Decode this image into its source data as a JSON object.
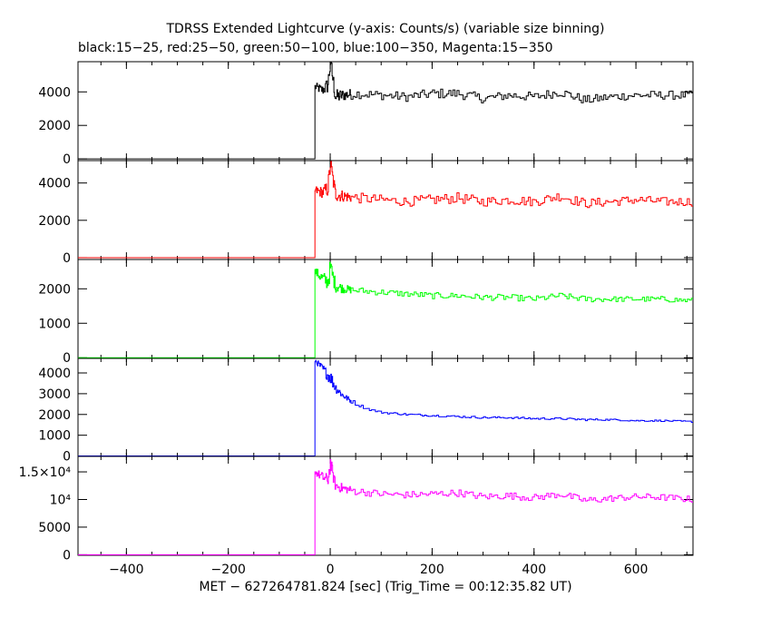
{
  "title_line1": "TDRSS Extended Lightcurve (y-axis: Counts/s) (variable size binning)",
  "title_line2": "black:15−25, red:25−50, green:50−100, blue:100−350, Magenta:15−350",
  "xlabel": "MET − 627264781.824 [sec] (Trig_Time = 00:12:35.82 UT)",
  "chart_data": [
    {
      "type": "line",
      "name": "black",
      "band": "15-25",
      "color": "#000000",
      "xlim": [
        -495,
        712
      ],
      "ylim": [
        -100,
        5800
      ],
      "yticks": [
        0,
        2000,
        4000
      ],
      "ytick_labels": [
        "0",
        "2000",
        "4000"
      ],
      "x": [
        -495,
        -30,
        -30,
        -15,
        -5,
        0,
        10,
        25,
        50,
        100,
        150,
        200,
        250,
        300,
        350,
        400,
        450,
        500,
        550,
        600,
        650,
        712
      ],
      "y": [
        0,
        0,
        4300,
        4100,
        4400,
        5800,
        3700,
        3800,
        3900,
        3800,
        3700,
        3900,
        3900,
        3600,
        3800,
        3700,
        4000,
        3500,
        3700,
        3800,
        3800,
        3800
      ],
      "noise": [
        0,
        0,
        250,
        300,
        500,
        600,
        450,
        350,
        300,
        280,
        280,
        300,
        300,
        280,
        280,
        280,
        280,
        280,
        260,
        260,
        260,
        260
      ]
    },
    {
      "type": "line",
      "name": "red",
      "band": "25-50",
      "color": "#ff0000",
      "xlim": [
        -495,
        712
      ],
      "ylim": [
        -100,
        5200
      ],
      "yticks": [
        0,
        2000,
        4000
      ],
      "ytick_labels": [
        "0",
        "2000",
        "4000"
      ],
      "x": [
        -495,
        -30,
        -30,
        -15,
        -5,
        0,
        10,
        25,
        50,
        100,
        150,
        200,
        250,
        300,
        350,
        400,
        450,
        500,
        550,
        600,
        650,
        712
      ],
      "y": [
        0,
        0,
        3600,
        3500,
        3700,
        5000,
        3400,
        3300,
        3200,
        3100,
        3000,
        3100,
        3200,
        3000,
        3100,
        3000,
        3300,
        2900,
        3000,
        3100,
        3000,
        3000
      ],
      "noise": [
        0,
        0,
        250,
        300,
        450,
        500,
        400,
        300,
        280,
        260,
        260,
        280,
        280,
        260,
        260,
        260,
        260,
        260,
        240,
        240,
        240,
        240
      ]
    },
    {
      "type": "line",
      "name": "green",
      "band": "50-100",
      "color": "#00ff00",
      "xlim": [
        -495,
        712
      ],
      "ylim": [
        -20,
        2850
      ],
      "yticks": [
        0,
        1000,
        2000
      ],
      "ytick_labels": [
        "0",
        "1000",
        "2000"
      ],
      "x": [
        -495,
        -30,
        -30,
        -15,
        -5,
        0,
        10,
        25,
        50,
        100,
        150,
        200,
        250,
        300,
        350,
        400,
        450,
        500,
        550,
        600,
        650,
        712
      ],
      "y": [
        0,
        0,
        2500,
        2300,
        2200,
        2600,
        2100,
        2000,
        1950,
        1900,
        1850,
        1800,
        1800,
        1750,
        1750,
        1700,
        1800,
        1700,
        1700,
        1700,
        1700,
        1650
      ],
      "noise": [
        0,
        0,
        120,
        180,
        250,
        300,
        200,
        120,
        100,
        90,
        90,
        90,
        90,
        90,
        90,
        90,
        90,
        90,
        80,
        80,
        80,
        80
      ]
    },
    {
      "type": "line",
      "name": "blue",
      "band": "100-350",
      "color": "#0000ff",
      "xlim": [
        -495,
        712
      ],
      "ylim": [
        -20,
        4700
      ],
      "yticks": [
        0,
        1000,
        2000,
        3000,
        4000
      ],
      "ytick_labels": [
        "0",
        "1000",
        "2000",
        "3000",
        "4000"
      ],
      "x": [
        -495,
        -30,
        -30,
        -15,
        -5,
        0,
        10,
        25,
        50,
        75,
        100,
        150,
        200,
        250,
        300,
        350,
        400,
        450,
        500,
        550,
        600,
        650,
        712
      ],
      "y": [
        0,
        0,
        4600,
        4200,
        3900,
        3800,
        3300,
        2900,
        2500,
        2250,
        2100,
        2000,
        1950,
        1900,
        1850,
        1850,
        1800,
        1800,
        1750,
        1750,
        1700,
        1700,
        1650
      ],
      "noise": [
        0,
        0,
        100,
        200,
        300,
        350,
        250,
        150,
        80,
        60,
        50,
        50,
        50,
        50,
        50,
        50,
        50,
        50,
        50,
        40,
        40,
        40,
        40
      ]
    },
    {
      "type": "line",
      "name": "magenta",
      "band": "15-350",
      "color": "#ff00ff",
      "xlim": [
        -495,
        712
      ],
      "ylim": [
        -100,
        17800
      ],
      "yticks": [
        0,
        5000,
        10000,
        15000
      ],
      "ytick_labels": [
        "0",
        "5000",
        "10⁴",
        "1.5×10⁴"
      ],
      "x": [
        -495,
        -30,
        -30,
        -15,
        -5,
        0,
        10,
        25,
        50,
        100,
        150,
        200,
        250,
        300,
        350,
        400,
        450,
        500,
        550,
        600,
        650,
        712
      ],
      "y": [
        0,
        0,
        15000,
        14000,
        13500,
        16500,
        12500,
        12000,
        11500,
        11000,
        10800,
        11000,
        11200,
        10500,
        10700,
        10300,
        11000,
        9800,
        10200,
        10500,
        10400,
        10000
      ],
      "noise": [
        0,
        0,
        600,
        900,
        1200,
        1400,
        1000,
        800,
        700,
        650,
        650,
        650,
        650,
        650,
        650,
        650,
        650,
        650,
        600,
        600,
        600,
        600
      ]
    }
  ],
  "xaxis": {
    "ticks": [
      -400,
      -200,
      0,
      200,
      400,
      600
    ],
    "tick_labels": [
      "−400",
      "−200",
      "0",
      "200",
      "400",
      "600"
    ]
  }
}
